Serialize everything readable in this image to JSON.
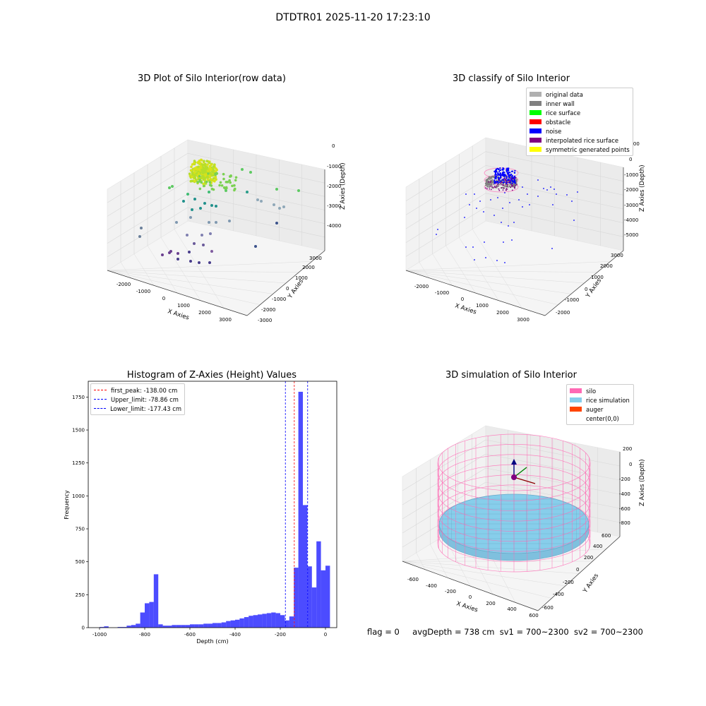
{
  "suptitle": "DTDTR01 2025-11-20 17:23:10",
  "footer": {
    "flag": "flag = 0",
    "avg_depth": "avgDepth = 738 cm",
    "sv1": "sv1 = 700~2300",
    "sv2": "sv2 = 700~2300"
  },
  "plots": {
    "raw": {
      "title": "3D Plot of Silo Interior(row data)",
      "xlabel": "X Axies",
      "ylabel": "Y Axies",
      "zlabel": "Z Axies (Depth)",
      "xticks": [
        "-2000",
        "-1000",
        "0",
        "1000",
        "2000",
        "3000"
      ],
      "yticks": [
        "-3000",
        "-2000",
        "-1000",
        "0",
        "1000",
        "2000",
        "3000"
      ],
      "zticks": [
        "0",
        "-1000",
        "-2000",
        "-3000",
        "-4000"
      ]
    },
    "classify": {
      "title": "3D classify of Silo Interior",
      "xlabel": "X Axies",
      "ylabel": "Y Axies",
      "zlabel": "Z Axies (Depth)",
      "xticks": [
        "-2000",
        "-1000",
        "0",
        "1000",
        "2000",
        "3000"
      ],
      "yticks": [
        "-2000",
        "-1000",
        "0",
        "1000",
        "2000",
        "3000"
      ],
      "zticks": [
        "1000",
        "0",
        "-1000",
        "-2000",
        "-3000",
        "-4000",
        "-5000"
      ],
      "legend": [
        {
          "label": "original data",
          "color": "#b0b0b0"
        },
        {
          "label": "inner wall",
          "color": "#808080"
        },
        {
          "label": "rice surface",
          "color": "#00ff00"
        },
        {
          "label": "obstacle",
          "color": "#ff0000"
        },
        {
          "label": "noise",
          "color": "#0000ff"
        },
        {
          "label": "interpolated rice surface",
          "color": "#800080"
        },
        {
          "label": "symmetric generated points",
          "color": "#ffff00"
        }
      ]
    },
    "histogram": {
      "title": "Histogram of Z-Axies (Height) Values",
      "xlabel": "Depth (cm)",
      "ylabel": "Frequency",
      "legend": [
        {
          "label": "first_peak: -138.00 cm",
          "color": "#ff0000"
        },
        {
          "label": "Upper_limit: -78.86 cm",
          "color": "#0000ff"
        },
        {
          "label": "Lower_limit: -177.43 cm",
          "color": "#0000ff"
        }
      ]
    },
    "simulation": {
      "title": "3D simulation of Silo Interior",
      "xlabel": "X Axies",
      "ylabel": "Y Axies",
      "zlabel": "Z Axies (Depth)",
      "xticks": [
        "-600",
        "-400",
        "-200",
        "0",
        "200",
        "400",
        "600"
      ],
      "yticks": [
        "-600",
        "-400",
        "-200",
        "0",
        "200",
        "400",
        "600"
      ],
      "zticks": [
        "200",
        "0",
        "-200",
        "-400",
        "-600",
        "-800"
      ],
      "legend": [
        {
          "label": "silo",
          "color": "#ff69b4"
        },
        {
          "label": "rice simulation",
          "color": "#87ceeb"
        },
        {
          "label": "auger",
          "color": "#ff4500"
        },
        {
          "label": "center(0,0)",
          "color": "#ffffff"
        }
      ]
    }
  },
  "chart_data": [
    {
      "type": "scatter",
      "title": "3D Plot of Silo Interior(row data)",
      "xlabel": "X Axies",
      "ylabel": "Y Axies",
      "zlabel": "Z Axies (Depth)",
      "xlim": [
        -2500,
        3500
      ],
      "ylim": [
        -3000,
        3500
      ],
      "zlim": [
        -4500,
        0
      ],
      "grid": true,
      "projection": "3d",
      "colormap": "viridis by depth",
      "note_cluster_center": [
        0,
        0,
        -700
      ]
    },
    {
      "type": "scatter",
      "title": "3D classify of Silo Interior",
      "xlabel": "X Axies",
      "ylabel": "Y Axies",
      "zlabel": "Z Axies (Depth)",
      "xlim": [
        -2500,
        3500
      ],
      "ylim": [
        -2500,
        3500
      ],
      "zlim": [
        -5500,
        1000
      ],
      "grid": true,
      "projection": "3d",
      "legend_position": "top-right",
      "series": [
        {
          "name": "original data"
        },
        {
          "name": "inner wall"
        },
        {
          "name": "rice surface"
        },
        {
          "name": "obstacle"
        },
        {
          "name": "noise"
        },
        {
          "name": "interpolated rice surface"
        },
        {
          "name": "symmetric generated points"
        }
      ]
    },
    {
      "type": "bar",
      "title": "Histogram of Z-Axies (Height) Values",
      "xlabel": "Depth (cm)",
      "ylabel": "Frequency",
      "xlim": [
        -1050,
        50
      ],
      "ylim": [
        0,
        1870
      ],
      "xticks": [
        -1000,
        -800,
        -600,
        -400,
        -200,
        0
      ],
      "yticks": [
        0,
        250,
        500,
        750,
        1000,
        1250,
        1500,
        1750
      ],
      "bin_start": -1000,
      "bin_width": 20,
      "values": [
        5,
        10,
        0,
        0,
        5,
        5,
        15,
        20,
        30,
        115,
        185,
        195,
        405,
        25,
        15,
        15,
        20,
        20,
        20,
        20,
        25,
        25,
        25,
        30,
        30,
        35,
        35,
        40,
        50,
        55,
        60,
        70,
        80,
        90,
        95,
        100,
        105,
        110,
        115,
        110,
        95,
        55,
        85,
        455,
        1790,
        930,
        465,
        305,
        655,
        435,
        470
      ],
      "vlines": [
        {
          "label": "first_peak: -138.00 cm",
          "x": -138.0,
          "color": "#ff0000"
        },
        {
          "label": "Upper_limit: -78.86 cm",
          "x": -78.86,
          "color": "#0000ff"
        },
        {
          "label": "Lower_limit: -177.43 cm",
          "x": -177.43,
          "color": "#0000ff"
        }
      ],
      "legend_position": "top-left",
      "bar_color": "#0000ff"
    },
    {
      "type": "surface",
      "title": "3D simulation of Silo Interior",
      "xlabel": "X Axies",
      "ylabel": "Y Axies",
      "zlabel": "Z Axies (Depth)",
      "xlim": [
        -700,
        700
      ],
      "ylim": [
        -700,
        700
      ],
      "zlim": [
        -900,
        300
      ],
      "projection": "3d",
      "legend_position": "top-right",
      "series": [
        {
          "name": "silo"
        },
        {
          "name": "rice simulation"
        },
        {
          "name": "auger"
        },
        {
          "name": "center(0,0)"
        }
      ]
    }
  ]
}
